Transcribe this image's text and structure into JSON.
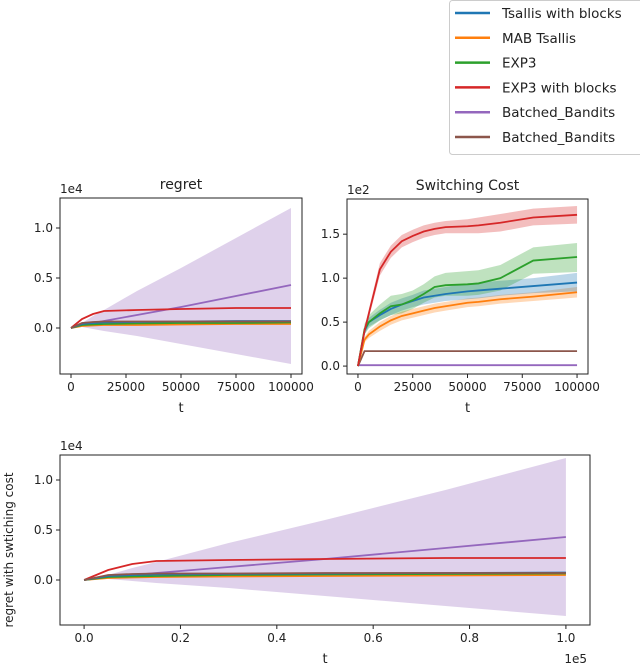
{
  "legend": {
    "placement": "top-right",
    "entries": [
      {
        "name": "Tsallis with blocks",
        "color": "#1f77b4"
      },
      {
        "name": "MAB Tsallis",
        "color": "#ff7f0e"
      },
      {
        "name": "EXP3",
        "color": "#2ca02c"
      },
      {
        "name": "EXP3 with blocks",
        "color": "#d62728"
      },
      {
        "name": "Batched_Bandits",
        "color": "#9467bd"
      },
      {
        "name": "Batched_Bandits",
        "color": "#8c564b"
      }
    ]
  },
  "chart_data": [
    {
      "type": "line",
      "title": "regret",
      "xlabel": "t",
      "ylabel": "",
      "y_offset_label": "1e4",
      "x_offset_label": "",
      "xlim": [
        -5000,
        105000
      ],
      "ylim": [
        -0.46,
        1.3
      ],
      "xticks": [
        0,
        25000,
        50000,
        75000,
        100000
      ],
      "xtick_labels": [
        "0",
        "25000",
        "50000",
        "75000",
        "100000"
      ],
      "yticks": [
        0,
        0.5,
        1.0
      ],
      "ytick_labels": [
        "0.0",
        "0.5",
        "1.0"
      ],
      "grid": false,
      "x": [
        0,
        5000,
        10000,
        15000,
        30000,
        50000,
        75000,
        100000
      ],
      "series": [
        {
          "legend_index": 4,
          "values": [
            0,
            0.03,
            0.05,
            0.07,
            0.13,
            0.21,
            0.32,
            0.43
          ],
          "band_low": [
            0,
            0.01,
            -0.01,
            -0.03,
            -0.08,
            -0.16,
            -0.26,
            -0.36
          ],
          "band_high": [
            0,
            0.05,
            0.12,
            0.18,
            0.37,
            0.6,
            0.9,
            1.2
          ]
        },
        {
          "legend_index": 3,
          "values": [
            0,
            0.09,
            0.14,
            0.17,
            0.18,
            0.19,
            0.2,
            0.2
          ]
        },
        {
          "legend_index": 1,
          "values": [
            0,
            0.02,
            0.025,
            0.03,
            0.03,
            0.035,
            0.04,
            0.04
          ]
        },
        {
          "legend_index": 2,
          "values": [
            0,
            0.03,
            0.035,
            0.04,
            0.045,
            0.05,
            0.05,
            0.055
          ]
        },
        {
          "legend_index": 0,
          "values": [
            0,
            0.04,
            0.05,
            0.055,
            0.06,
            0.065,
            0.07,
            0.07
          ]
        },
        {
          "legend_index": 5,
          "values": [
            0,
            0.05,
            0.06,
            0.065,
            0.065,
            0.065,
            0.065,
            0.065
          ]
        }
      ]
    },
    {
      "type": "line",
      "title": "Switching Cost",
      "xlabel": "t",
      "ylabel": "",
      "y_offset_label": "1e2",
      "x_offset_label": "",
      "xlim": [
        -5000,
        105000
      ],
      "ylim": [
        -0.09,
        1.9
      ],
      "xticks": [
        0,
        25000,
        50000,
        75000,
        100000
      ],
      "xtick_labels": [
        "0",
        "25000",
        "50000",
        "75000",
        "100000"
      ],
      "yticks": [
        0,
        0.5,
        1.0,
        1.5
      ],
      "ytick_labels": [
        "0.0",
        "0.5",
        "1.0",
        "1.5"
      ],
      "grid": false,
      "x": [
        0,
        3000,
        5000,
        10000,
        15000,
        20000,
        25000,
        30000,
        35000,
        40000,
        50000,
        55000,
        65000,
        80000,
        100000
      ],
      "series": [
        {
          "legend_index": 4,
          "values": [
            0.01,
            0.01,
            0.01,
            0.01,
            0.01,
            0.01,
            0.01,
            0.01,
            0.01,
            0.01,
            0.01,
            0.01,
            0.01,
            0.01,
            0.01
          ]
        },
        {
          "legend_index": 5,
          "values": [
            0.0,
            0.17,
            0.17,
            0.17,
            0.17,
            0.17,
            0.17,
            0.17,
            0.17,
            0.17,
            0.17,
            0.17,
            0.17,
            0.17,
            0.17
          ]
        },
        {
          "legend_index": 1,
          "values": [
            0,
            0.3,
            0.36,
            0.45,
            0.52,
            0.57,
            0.6,
            0.63,
            0.66,
            0.68,
            0.72,
            0.73,
            0.76,
            0.79,
            0.84
          ],
          "band_low": [
            0,
            0.27,
            0.32,
            0.4,
            0.47,
            0.52,
            0.55,
            0.58,
            0.61,
            0.63,
            0.67,
            0.68,
            0.71,
            0.74,
            0.78
          ],
          "band_high": [
            0,
            0.33,
            0.4,
            0.5,
            0.57,
            0.62,
            0.65,
            0.68,
            0.71,
            0.73,
            0.77,
            0.78,
            0.81,
            0.84,
            0.9
          ]
        },
        {
          "legend_index": 0,
          "values": [
            0,
            0.4,
            0.5,
            0.58,
            0.65,
            0.7,
            0.74,
            0.78,
            0.8,
            0.82,
            0.85,
            0.86,
            0.88,
            0.91,
            0.95
          ],
          "band_low": [
            0,
            0.36,
            0.45,
            0.52,
            0.58,
            0.63,
            0.67,
            0.7,
            0.72,
            0.74,
            0.76,
            0.77,
            0.8,
            0.83,
            0.85
          ],
          "band_high": [
            0,
            0.45,
            0.55,
            0.64,
            0.72,
            0.77,
            0.81,
            0.86,
            0.88,
            0.9,
            0.94,
            0.95,
            0.97,
            1.0,
            1.06
          ]
        },
        {
          "legend_index": 2,
          "values": [
            0,
            0.42,
            0.5,
            0.6,
            0.68,
            0.7,
            0.75,
            0.82,
            0.9,
            0.92,
            0.93,
            0.94,
            1.0,
            1.2,
            1.24
          ],
          "band_low": [
            0,
            0.36,
            0.43,
            0.52,
            0.58,
            0.6,
            0.65,
            0.72,
            0.78,
            0.8,
            0.8,
            0.81,
            0.86,
            1.05,
            1.07
          ],
          "band_high": [
            0,
            0.48,
            0.58,
            0.7,
            0.8,
            0.82,
            0.86,
            0.93,
            1.02,
            1.06,
            1.08,
            1.09,
            1.15,
            1.35,
            1.4
          ]
        },
        {
          "legend_index": 3,
          "values": [
            0,
            0.4,
            0.6,
            1.1,
            1.3,
            1.42,
            1.48,
            1.53,
            1.56,
            1.58,
            1.59,
            1.6,
            1.63,
            1.69,
            1.72
          ],
          "band_low": [
            0,
            0.36,
            0.55,
            1.03,
            1.23,
            1.35,
            1.41,
            1.46,
            1.49,
            1.51,
            1.51,
            1.51,
            1.53,
            1.6,
            1.62
          ],
          "band_high": [
            0,
            0.44,
            0.65,
            1.17,
            1.37,
            1.49,
            1.55,
            1.6,
            1.63,
            1.65,
            1.67,
            1.69,
            1.73,
            1.79,
            1.82
          ]
        }
      ]
    },
    {
      "type": "line",
      "title": "",
      "xlabel": "t",
      "ylabel": "regret with swtiching cost",
      "y_offset_label": "1e4",
      "x_offset_label": "1e5",
      "xlim": [
        -0.05,
        1.05
      ],
      "ylim": [
        -0.45,
        1.25
      ],
      "xticks": [
        0,
        0.2,
        0.4,
        0.6,
        0.8,
        1.0
      ],
      "xtick_labels": [
        "0.0",
        "0.2",
        "0.4",
        "0.6",
        "0.8",
        "1.0"
      ],
      "yticks": [
        0,
        0.5,
        1.0
      ],
      "ytick_labels": [
        "0.0",
        "0.5",
        "1.0"
      ],
      "grid": false,
      "x": [
        0,
        0.05,
        0.1,
        0.15,
        0.3,
        0.5,
        0.75,
        1.0
      ],
      "series": [
        {
          "legend_index": 4,
          "values": [
            0,
            0.03,
            0.05,
            0.07,
            0.13,
            0.21,
            0.32,
            0.43
          ],
          "band_low": [
            0,
            0.01,
            -0.01,
            -0.03,
            -0.08,
            -0.16,
            -0.26,
            -0.36
          ],
          "band_high": [
            0,
            0.05,
            0.12,
            0.18,
            0.37,
            0.6,
            0.9,
            1.22
          ]
        },
        {
          "legend_index": 3,
          "values": [
            0,
            0.1,
            0.16,
            0.19,
            0.2,
            0.21,
            0.22,
            0.22
          ]
        },
        {
          "legend_index": 1,
          "values": [
            0,
            0.02,
            0.025,
            0.03,
            0.035,
            0.04,
            0.045,
            0.05
          ]
        },
        {
          "legend_index": 2,
          "values": [
            0,
            0.03,
            0.035,
            0.04,
            0.05,
            0.055,
            0.06,
            0.065
          ]
        },
        {
          "legend_index": 0,
          "values": [
            0,
            0.04,
            0.05,
            0.055,
            0.06,
            0.065,
            0.07,
            0.075
          ]
        },
        {
          "legend_index": 5,
          "values": [
            0,
            0.05,
            0.06,
            0.065,
            0.065,
            0.07,
            0.07,
            0.07
          ]
        }
      ]
    }
  ]
}
